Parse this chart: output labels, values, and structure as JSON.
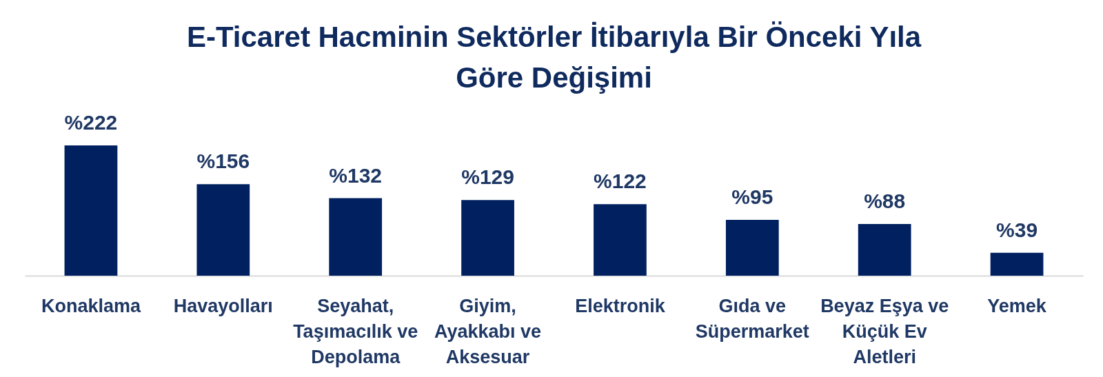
{
  "chart_data": {
    "type": "bar",
    "title": "E-Ticaret Hacminin Sektörler İtibarıyla Bir Önceki Yıla Göre Değişimi",
    "categories": [
      "Konaklama",
      "Havayolları",
      "Seyahat, Taşımacılık ve Depolama",
      "Giyim, Ayakkabı ve Aksesuar",
      "Elektronik",
      "Gıda ve Süpermarket",
      "Beyaz Eşya ve Küçük Ev Aletleri",
      "Yemek"
    ],
    "values": [
      222,
      156,
      132,
      129,
      122,
      95,
      88,
      39
    ],
    "value_labels": [
      "%222",
      "%156",
      "%132",
      "%129",
      "%122",
      "%95",
      "%88",
      "%39"
    ],
    "color": "#002060"
  }
}
